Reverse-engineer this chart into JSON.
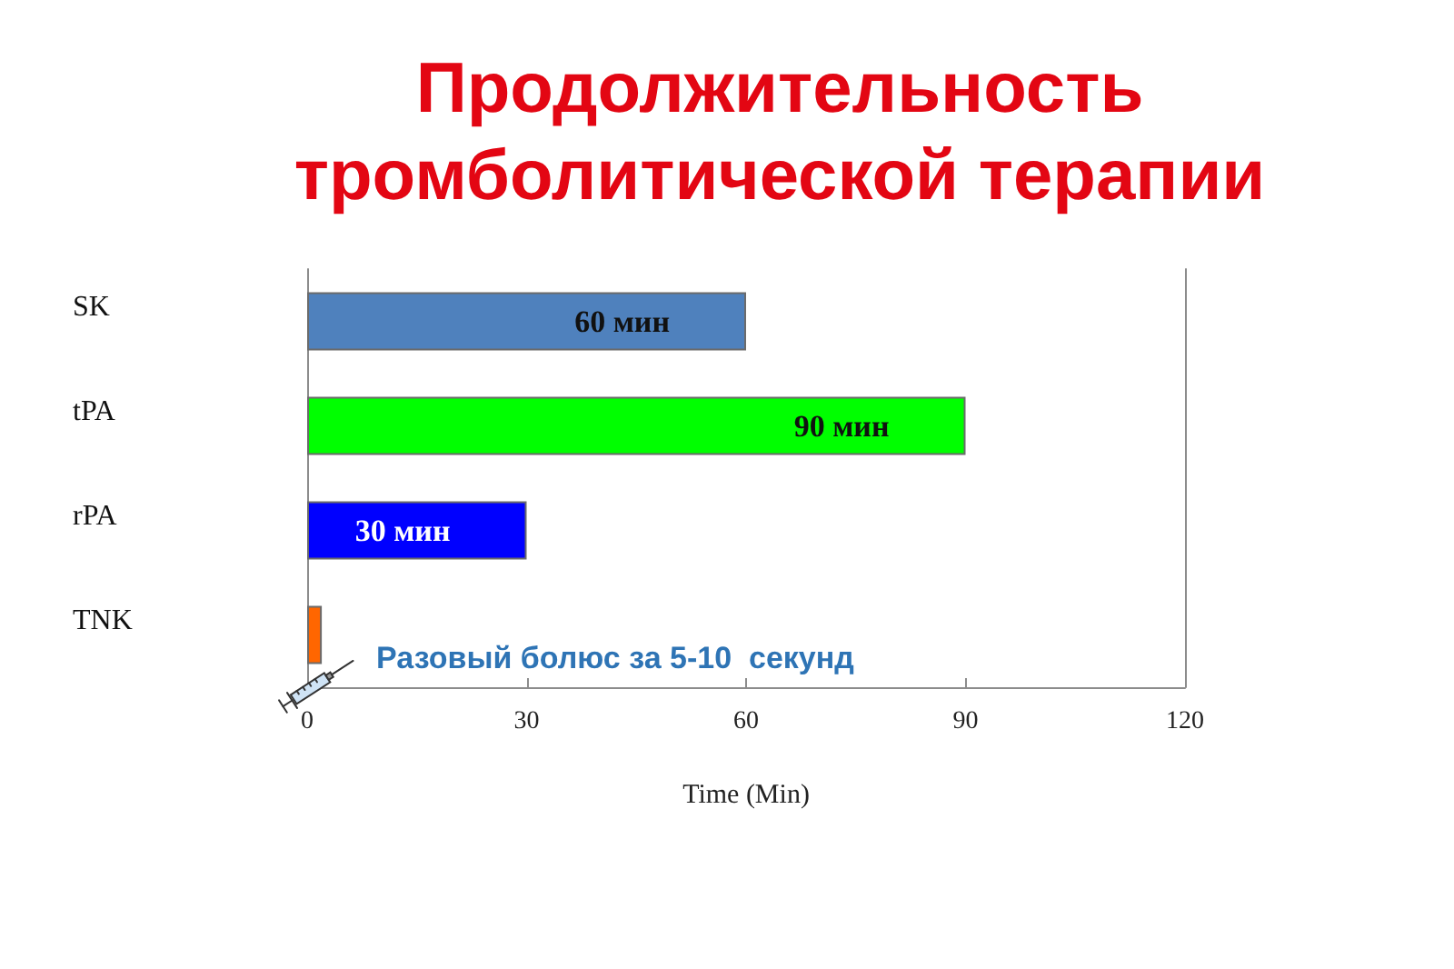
{
  "chart_data": {
    "type": "bar",
    "orientation": "horizontal",
    "title": "Продолжительность тромболитической терапии",
    "xlabel": "Time (Min)",
    "categories": [
      "SK",
      "tPA",
      "rPA",
      "TNK"
    ],
    "values": [
      60,
      90,
      30,
      2
    ],
    "colors": [
      "#4f81bd",
      "#00ff00",
      "#0000ff",
      "#ff6600"
    ],
    "value_labels": [
      "60 мин",
      "90 мин",
      "30 мин",
      null
    ],
    "xlim": [
      0,
      120
    ],
    "xticks": [
      0,
      30,
      60,
      90,
      120
    ],
    "grid": false,
    "annotations": [
      {
        "text": "Разовый болюс за 5-10  секунд",
        "x": 2,
        "y": "TNK"
      }
    ]
  }
}
